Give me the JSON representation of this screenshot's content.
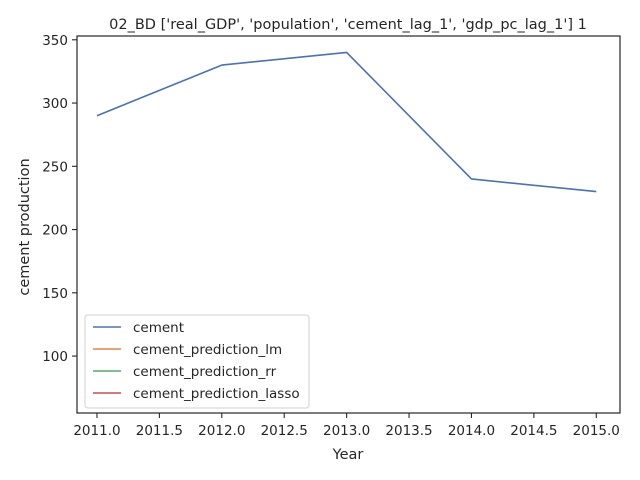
{
  "chart_data": {
    "type": "line",
    "title": "02_BD ['real_GDP', 'population', 'cement_lag_1', 'gdp_pc_lag_1'] 1",
    "xlabel": "Year",
    "ylabel": "cement production",
    "xlim": [
      2010.84,
      2015.19
    ],
    "ylim": [
      55,
      353
    ],
    "xticks": [
      2011.0,
      2011.5,
      2012.0,
      2012.5,
      2013.0,
      2013.5,
      2014.0,
      2014.5,
      2015.0
    ],
    "xtick_labels": [
      "2011.0",
      "2011.5",
      "2012.0",
      "2012.5",
      "2013.0",
      "2013.5",
      "2014.0",
      "2014.5",
      "2015.0"
    ],
    "yticks": [
      100,
      150,
      200,
      250,
      300,
      350
    ],
    "ytick_labels": [
      "100",
      "150",
      "200",
      "250",
      "300",
      "350"
    ],
    "grid": false,
    "legend_position": "lower-left",
    "series": [
      {
        "name": "cement",
        "color": "#4c72b0",
        "x": [
          2011,
          2012,
          2013,
          2014,
          2015
        ],
        "y": [
          290,
          330,
          340,
          240,
          230
        ]
      },
      {
        "name": "cement_prediction_lm",
        "color": "#dd8452",
        "x": [],
        "y": []
      },
      {
        "name": "cement_prediction_rr",
        "color": "#55a868",
        "x": [],
        "y": []
      },
      {
        "name": "cement_prediction_lasso",
        "color": "#c44e52",
        "x": [],
        "y": []
      }
    ]
  }
}
